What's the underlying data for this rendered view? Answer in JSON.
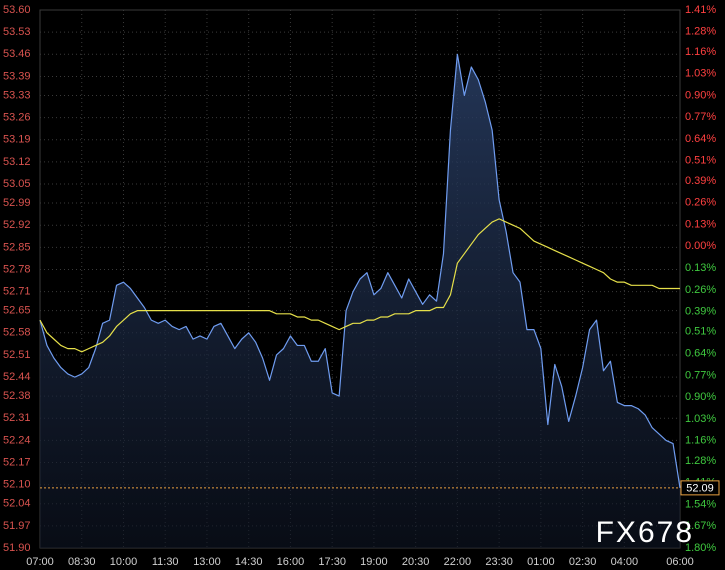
{
  "chart_data": {
    "type": "line",
    "xlim": [
      0,
      1380
    ],
    "xticks": [
      {
        "value": 0,
        "label": "07:00"
      },
      {
        "value": 90,
        "label": "08:30"
      },
      {
        "value": 180,
        "label": "10:00"
      },
      {
        "value": 270,
        "label": "11:30"
      },
      {
        "value": 360,
        "label": "13:00"
      },
      {
        "value": 450,
        "label": "14:30"
      },
      {
        "value": 540,
        "label": "16:00"
      },
      {
        "value": 630,
        "label": "17:30"
      },
      {
        "value": 720,
        "label": "19:00"
      },
      {
        "value": 810,
        "label": "20:30"
      },
      {
        "value": 900,
        "label": "22:00"
      },
      {
        "value": 990,
        "label": "23:30"
      },
      {
        "value": 1080,
        "label": "01:00"
      },
      {
        "value": 1170,
        "label": "02:30"
      },
      {
        "value": 1260,
        "label": "04:00"
      },
      {
        "value": 1380,
        "label": "06:00"
      }
    ],
    "ylim": [
      51.9,
      53.6
    ],
    "yticks": [
      {
        "value": 53.6,
        "label": "53.60"
      },
      53.53,
      53.46,
      53.39,
      53.33,
      53.26,
      53.19,
      53.12,
      53.05,
      52.99,
      52.92,
      52.85,
      52.78,
      52.71,
      52.65,
      52.58,
      52.51,
      52.44,
      52.38,
      52.31,
      52.24,
      52.17,
      {
        "value": 52.1,
        "label": "52.10"
      },
      52.04,
      51.97,
      {
        "value": 51.9,
        "label": "51.90"
      }
    ],
    "y2lim": [
      -1.8,
      1.41
    ],
    "y2ticks": [
      {
        "value": 1.41,
        "label": "1.41%"
      },
      {
        "value": 1.28,
        "label": "1.28%"
      },
      {
        "value": 1.16,
        "label": "1.16%"
      },
      {
        "value": 1.03,
        "label": "1.03%"
      },
      {
        "value": 0.9,
        "label": "0.90%"
      },
      {
        "value": 0.77,
        "label": "0.77%"
      },
      {
        "value": 0.64,
        "label": "0.64%"
      },
      {
        "value": 0.51,
        "label": "0.51%"
      },
      {
        "value": 0.39,
        "label": "0.39%"
      },
      {
        "value": 0.26,
        "label": "0.26%"
      },
      {
        "value": 0.13,
        "label": "0.13%"
      },
      {
        "value": 0,
        "label": "0.00%"
      },
      {
        "value": -0.13,
        "label": "0.13%"
      },
      {
        "value": -0.26,
        "label": "0.26%"
      },
      {
        "value": -0.39,
        "label": "0.39%"
      },
      {
        "value": -0.51,
        "label": "0.51%"
      },
      {
        "value": -0.64,
        "label": "0.64%"
      },
      {
        "value": -0.77,
        "label": "0.77%"
      },
      {
        "value": -0.9,
        "label": "0.90%"
      },
      {
        "value": -1.03,
        "label": "1.03%"
      },
      {
        "value": -1.16,
        "label": "1.16%"
      },
      {
        "value": -1.28,
        "label": "1.28%"
      },
      {
        "value": -1.41,
        "label": "1.41%"
      },
      {
        "value": -1.54,
        "label": "1.54%"
      },
      {
        "value": -1.67,
        "label": "1.67%"
      },
      {
        "value": -1.8,
        "label": "1.80%"
      }
    ],
    "y_label_color": "#d9534f",
    "y2_up_color": "#ff4040",
    "y2_down_color": "#3fc93f",
    "grid": true,
    "x": [
      0,
      15,
      30,
      45,
      60,
      75,
      90,
      105,
      120,
      135,
      150,
      165,
      180,
      195,
      210,
      225,
      240,
      255,
      270,
      285,
      300,
      315,
      330,
      345,
      360,
      375,
      390,
      405,
      420,
      435,
      450,
      465,
      480,
      495,
      510,
      525,
      540,
      555,
      570,
      585,
      600,
      615,
      630,
      645,
      660,
      675,
      690,
      705,
      720,
      735,
      750,
      765,
      780,
      795,
      810,
      825,
      840,
      855,
      870,
      885,
      900,
      915,
      930,
      945,
      960,
      975,
      990,
      1005,
      1020,
      1035,
      1050,
      1065,
      1080,
      1095,
      1110,
      1125,
      1140,
      1155,
      1170,
      1185,
      1200,
      1215,
      1230,
      1245,
      1260,
      1275,
      1290,
      1305,
      1320,
      1335,
      1350,
      1365,
      1380
    ],
    "series": [
      {
        "color": "#6f9cf0",
        "values": [
          52.62,
          52.54,
          52.5,
          52.47,
          52.45,
          52.44,
          52.45,
          52.47,
          52.53,
          52.61,
          52.62,
          52.73,
          52.74,
          52.72,
          52.69,
          52.66,
          52.62,
          52.61,
          52.62,
          52.6,
          52.59,
          52.6,
          52.56,
          52.57,
          52.56,
          52.6,
          52.61,
          52.57,
          52.53,
          52.56,
          52.58,
          52.55,
          52.5,
          52.43,
          52.51,
          52.53,
          52.57,
          52.54,
          52.54,
          52.49,
          52.49,
          52.53,
          52.39,
          52.38,
          52.65,
          52.71,
          52.75,
          52.77,
          52.7,
          52.72,
          52.77,
          52.73,
          52.69,
          52.75,
          52.71,
          52.67,
          52.7,
          52.68,
          52.83,
          53.22,
          53.46,
          53.33,
          53.42,
          53.38,
          53.31,
          53.22,
          53.0,
          52.9,
          52.77,
          52.74,
          52.59,
          52.59,
          52.53,
          52.29,
          52.48,
          52.41,
          52.3,
          52.38,
          52.47,
          52.59,
          52.62,
          52.46,
          52.49,
          52.36,
          52.35,
          52.35,
          52.34,
          52.32,
          52.28,
          52.26,
          52.24,
          52.23,
          52.09
        ]
      },
      {
        "color": "#e6e04a",
        "values": [
          52.62,
          52.58,
          52.56,
          52.54,
          52.53,
          52.53,
          52.52,
          52.53,
          52.54,
          52.55,
          52.57,
          52.6,
          52.62,
          52.64,
          52.65,
          52.65,
          52.65,
          52.65,
          52.65,
          52.65,
          52.65,
          52.65,
          52.65,
          52.65,
          52.65,
          52.65,
          52.65,
          52.65,
          52.65,
          52.65,
          52.65,
          52.65,
          52.65,
          52.65,
          52.64,
          52.64,
          52.64,
          52.63,
          52.63,
          52.62,
          52.62,
          52.61,
          52.6,
          52.59,
          52.6,
          52.61,
          52.61,
          52.62,
          52.62,
          52.63,
          52.63,
          52.64,
          52.64,
          52.64,
          52.65,
          52.65,
          52.65,
          52.66,
          52.66,
          52.7,
          52.8,
          52.83,
          52.86,
          52.89,
          52.91,
          52.93,
          52.94,
          52.93,
          52.92,
          52.91,
          52.89,
          52.87,
          52.86,
          52.85,
          52.84,
          52.83,
          52.82,
          52.81,
          52.8,
          52.79,
          52.78,
          52.77,
          52.75,
          52.74,
          52.74,
          52.73,
          52.73,
          52.73,
          52.73,
          52.72,
          52.72,
          52.72,
          52.72
        ]
      }
    ],
    "last_price": 52.09,
    "watermark": "FX678"
  }
}
